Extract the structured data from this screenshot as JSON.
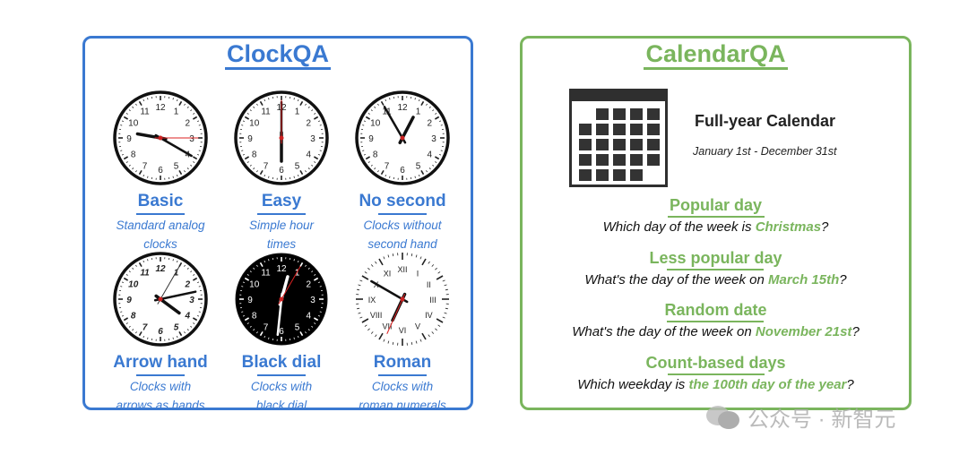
{
  "clockqa": {
    "title": "ClockQA",
    "colors": {
      "accent": "#3a79d1"
    },
    "items": [
      {
        "name": "Basic",
        "desc1": "Standard analog",
        "desc2": "clocks",
        "style": "basic",
        "time": "9:20:15"
      },
      {
        "name": "Easy",
        "desc1": "Simple hour",
        "desc2": "times",
        "style": "basic",
        "time": "6:00:00"
      },
      {
        "name": "No second",
        "desc1": "Clocks without",
        "desc2": "second hand",
        "style": "nosecond",
        "time": "12:55"
      },
      {
        "name": "Arrow hand",
        "desc1": "Clocks with",
        "desc2": "arrows as hands",
        "style": "arrow",
        "time": "4:13:05"
      },
      {
        "name": "Black dial",
        "desc1": "Clocks with",
        "desc2": "black dial",
        "style": "black",
        "time": "12:31:05"
      },
      {
        "name": "Roman",
        "desc1": "Clocks with",
        "desc2": "roman numerals",
        "style": "roman",
        "time": "6:50:34"
      }
    ]
  },
  "calendarqa": {
    "title": "CalendarQA",
    "colors": {
      "accent": "#7ab55d"
    },
    "icon": "calendar-icon",
    "card_title": "Full-year Calendar",
    "card_sub": "January 1st - December 31st",
    "questions": [
      {
        "type": "Popular day",
        "pre": "Which day of the week is ",
        "hl": "Christmas",
        "post": "?"
      },
      {
        "type": "Less popular day",
        "pre": "What's the day of the week on ",
        "hl": "March 15th",
        "post": "?"
      },
      {
        "type": "Random date",
        "pre": "What's the day of the week on ",
        "hl": "November 21st",
        "post": "?"
      },
      {
        "type": "Count-based days",
        "pre": "Which weekday is ",
        "hl": "the 100th day of the year",
        "post": "?"
      }
    ]
  },
  "watermark": "公众号 · 新智元"
}
